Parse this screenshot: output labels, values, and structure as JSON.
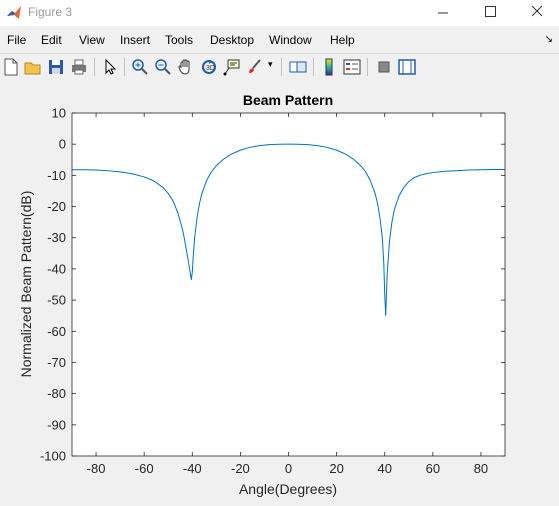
{
  "window": {
    "title": "Figure 3"
  },
  "menu": [
    "File",
    "Edit",
    "View",
    "Insert",
    "Tools",
    "Desktop",
    "Window",
    "Help"
  ],
  "toolbar": {
    "buttons": [
      "new-figure",
      "open-file",
      "save",
      "print",
      "edit-plot",
      "zoom-in",
      "zoom-out",
      "pan",
      "rotate-3d",
      "data-cursor",
      "brush",
      "link-plot",
      "insert-colorbar",
      "insert-legend",
      "hide-plot-tools",
      "show-plot-tools"
    ]
  },
  "chart_data": {
    "type": "line",
    "title": "Beam Pattern",
    "xlabel": "Angle(Degrees)",
    "ylabel": "Normalized Beam Pattern(dB)",
    "xlim": [
      -90,
      90
    ],
    "ylim": [
      -100,
      10
    ],
    "xticks": [
      "-80",
      "-60",
      "-40",
      "-20",
      "0",
      "20",
      "40",
      "60",
      "80"
    ],
    "yticks": [
      "10",
      "0",
      "-10",
      "-20",
      "-30",
      "-40",
      "-50",
      "-60",
      "-70",
      "-80",
      "-90",
      "-100"
    ],
    "grid": false,
    "series": [
      {
        "color": "#0072bd",
        "x": [
          -90,
          -85,
          -80,
          -75,
          -70,
          -65,
          -60,
          -57,
          -55,
          -52,
          -50,
          -48,
          -46,
          -44,
          -43,
          -42,
          -41,
          -40.4,
          -40,
          -39.6,
          -39,
          -38,
          -37,
          -36,
          -34,
          -32,
          -30,
          -27,
          -24,
          -20,
          -16,
          -12,
          -8,
          -4,
          0,
          4,
          8,
          12,
          16,
          20,
          24,
          27,
          30,
          32,
          34,
          36,
          37,
          38,
          39,
          39.6,
          40,
          40.4,
          41,
          42,
          43,
          44,
          46,
          48,
          50,
          52,
          55,
          57,
          60,
          65,
          70,
          75,
          80,
          85,
          90
        ],
        "y": [
          -8.2,
          -8.2,
          -8.3,
          -8.5,
          -8.9,
          -9.5,
          -10.5,
          -11.4,
          -12.3,
          -14.0,
          -15.8,
          -18.2,
          -22.0,
          -27.5,
          -31.5,
          -36.0,
          -40.5,
          -43.5,
          -41.0,
          -36.0,
          -30.0,
          -23.5,
          -19.0,
          -15.8,
          -11.6,
          -8.8,
          -6.9,
          -4.8,
          -3.3,
          -1.9,
          -1.0,
          -0.45,
          -0.15,
          -0.03,
          0,
          -0.03,
          -0.15,
          -0.45,
          -1.0,
          -1.9,
          -3.3,
          -4.8,
          -6.9,
          -8.8,
          -11.6,
          -15.8,
          -19.0,
          -23.5,
          -30.0,
          -38.0,
          -48.0,
          -55.0,
          -42.0,
          -31.0,
          -25.0,
          -21.0,
          -16.5,
          -13.8,
          -12.0,
          -10.8,
          -9.9,
          -9.5,
          -9.1,
          -8.7,
          -8.5,
          -8.3,
          -8.2,
          -8.1,
          -8.1
        ]
      }
    ]
  }
}
